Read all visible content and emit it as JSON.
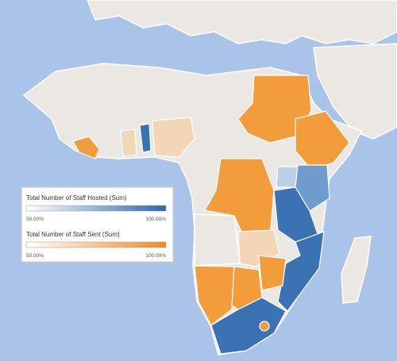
{
  "legend": {
    "hosted": {
      "title": "Total Number of Staff Hosted (Sum)",
      "min_label": "50.00%",
      "max_label": "100.00%"
    },
    "sent": {
      "title": "Total Number of Staff Sent (Sum)",
      "min_label": "50.00%",
      "max_label": "100.00%"
    }
  }
}
